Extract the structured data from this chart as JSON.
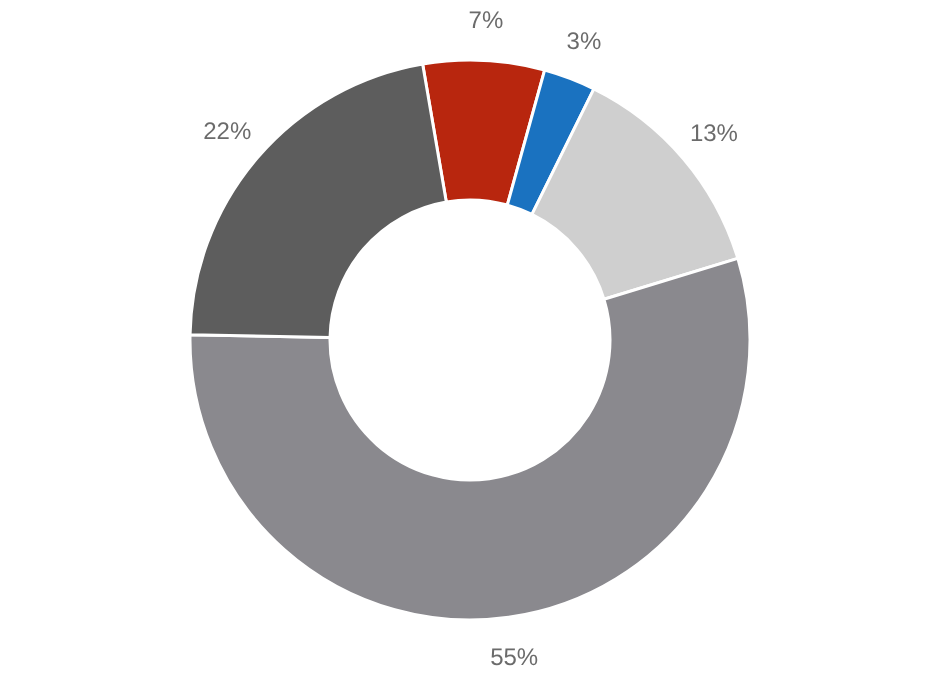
{
  "chart_data": {
    "type": "donut",
    "categories": [
      null,
      null,
      null,
      null,
      null
    ],
    "values": [
      7,
      3,
      13,
      55,
      22
    ],
    "colors": [
      "#b8260e",
      "#1a72c0",
      "#cfcfcf",
      "#8a898e",
      "#5d5d5d"
    ],
    "value_labels": [
      "7%",
      "3%",
      "13%",
      "55%",
      "22%"
    ]
  }
}
